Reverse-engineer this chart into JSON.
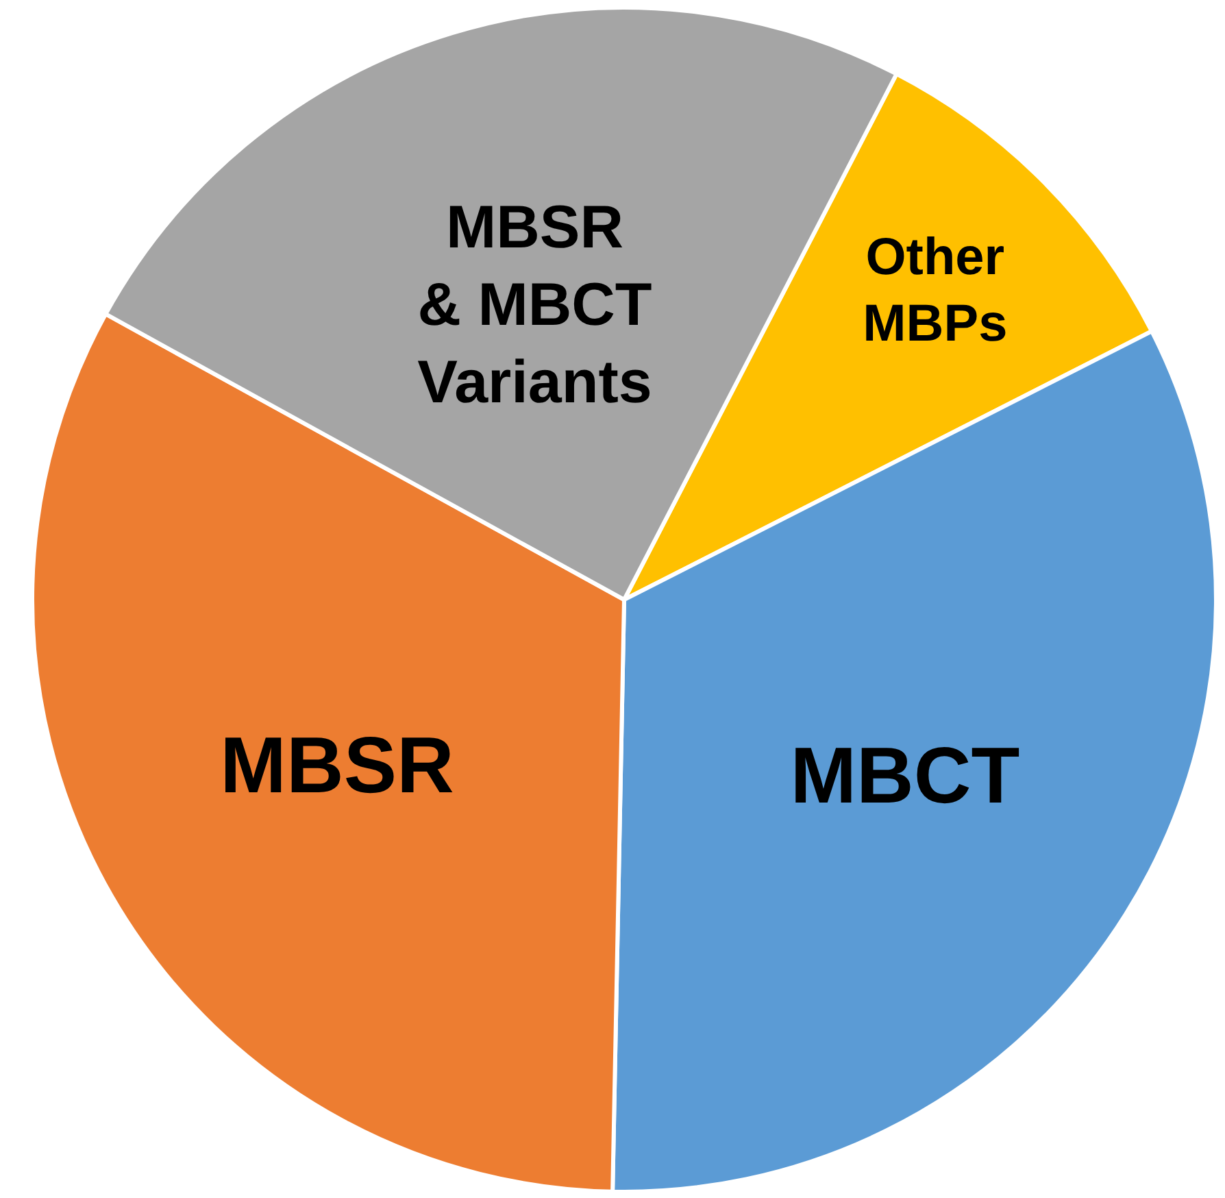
{
  "chart_data": {
    "type": "pie",
    "categories": [
      "Other\nMBPs",
      "MBCT",
      "MBSR",
      "MBSR\n& MBCT\nVariants"
    ],
    "values": [
      9.9,
      32.8,
      32.7,
      24.6
    ],
    "colors": [
      "#ffc000",
      "#5b9bd5",
      "#ed7d31",
      "#a5a5a5"
    ]
  }
}
